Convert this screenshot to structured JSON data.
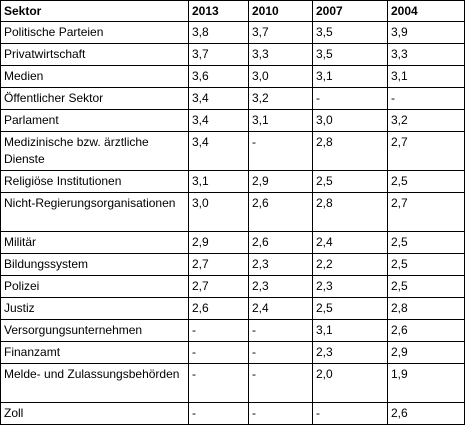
{
  "table": {
    "headers": [
      "Sektor",
      "2013",
      "2010",
      "2007",
      "2004"
    ],
    "rows": [
      [
        "Politische Parteien",
        "3,8",
        "3,7",
        "3,5",
        "3,9"
      ],
      [
        "Privatwirtschaft",
        "3,7",
        "3,3",
        "3,5",
        "3,3"
      ],
      [
        "Medien",
        "3,6",
        "3,0",
        "3,1",
        "3,1"
      ],
      [
        "Öffentlicher Sektor",
        "3,4",
        "3,2",
        "-",
        "-"
      ],
      [
        "Parlament",
        "3,4",
        "3,1",
        "3,0",
        "3,2"
      ],
      [
        "Medizinische bzw. ärztliche Dienste",
        "3,4",
        "-",
        "2,8",
        "2,7"
      ],
      [
        "Religiöse Institutionen",
        "3,1",
        "2,9",
        "2,5",
        "2,5"
      ],
      [
        "Nicht-Regierungsorganisationen",
        "3,0",
        "2,6",
        "2,8",
        "2,7"
      ],
      [
        "Militär",
        "2,9",
        "2,6",
        "2,4",
        "2,5"
      ],
      [
        "Bildungssystem",
        "2,7",
        "2,3",
        "2,2",
        "2,5"
      ],
      [
        "Polizei",
        "2,7",
        "2,3",
        "2,3",
        "2,5"
      ],
      [
        "Justiz",
        "2,6",
        "2,4",
        "2,5",
        "2,8"
      ],
      [
        "Versorgungsunternehmen",
        "-",
        "-",
        "3,1",
        "2,6"
      ],
      [
        "Finanzamt",
        "-",
        "-",
        "2,3",
        "2,9"
      ],
      [
        "Melde- und Zulassungsbehörden",
        "-",
        "-",
        "2,0",
        "1,9"
      ],
      [
        "Zoll",
        "-",
        "-",
        "-",
        "2,6"
      ]
    ]
  }
}
